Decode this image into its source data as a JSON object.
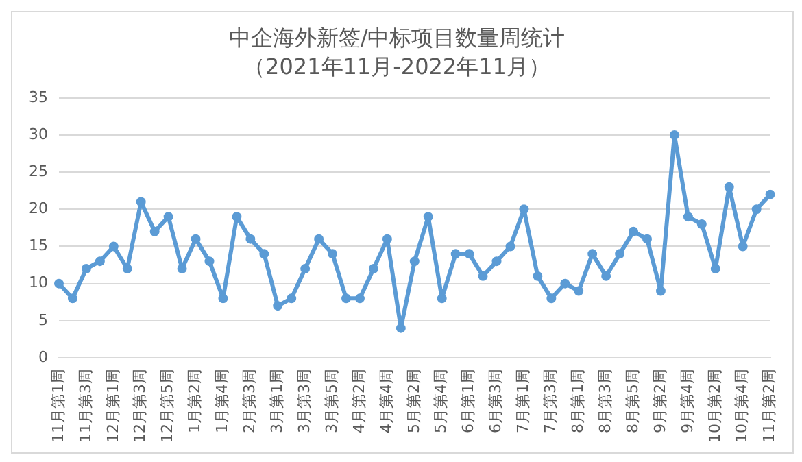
{
  "chart_data": {
    "type": "line",
    "title": "中企海外新签/中标项目数量周统计",
    "subtitle": "（2021年11月-2022年11月）",
    "categories": [
      "11月第1周",
      null,
      "11月第3周",
      null,
      "12月第1周",
      null,
      "12月第3周",
      null,
      "12月第5周",
      null,
      "1月第2周",
      null,
      "1月第4周",
      null,
      "2月第3周",
      null,
      "3月第1周",
      null,
      "3月第3周",
      null,
      "3月第5周",
      null,
      "4月第2周",
      null,
      "4月第4周",
      null,
      "5月第2周",
      null,
      "5月第4周",
      null,
      "6月第1周",
      null,
      "6月第3周",
      null,
      "7月第1周",
      null,
      "7月第3周",
      null,
      "8月第1周",
      null,
      "8月第3周",
      null,
      "8月第5周",
      null,
      "9月第2周",
      null,
      "9月第4周",
      null,
      "10月第2周",
      null,
      "10月第4周",
      null,
      "11月第2周"
    ],
    "series": [
      {
        "color": "#5b9bd5",
        "values": [
          10,
          8,
          12,
          13,
          15,
          12,
          21,
          17,
          19,
          12,
          16,
          13,
          8,
          19,
          16,
          14,
          7,
          8,
          12,
          16,
          14,
          8,
          8,
          12,
          16,
          4,
          13,
          19,
          8,
          14,
          14,
          11,
          13,
          15,
          20,
          11,
          8,
          10,
          9,
          14,
          11,
          14,
          17,
          16,
          9,
          30,
          19,
          18,
          12,
          23,
          15,
          20,
          22
        ]
      }
    ],
    "ylim": [
      0,
      35
    ],
    "yticks": [
      0,
      5,
      10,
      15,
      20,
      25,
      30,
      35
    ],
    "grid": "y",
    "legend": false,
    "marker": "circle",
    "line_style": "solid"
  }
}
